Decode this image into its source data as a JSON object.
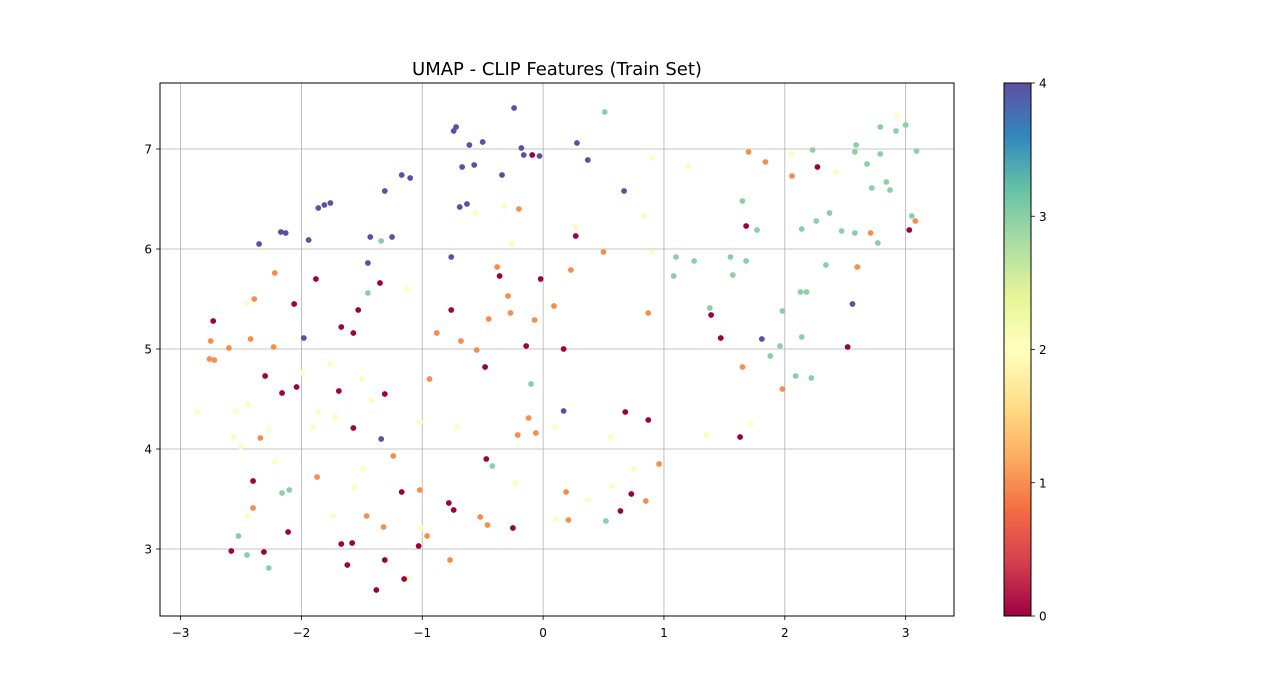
{
  "chart_data": {
    "type": "scatter",
    "title": "UMAP - CLIP Features (Train Set)",
    "xlabel": "",
    "ylabel": "",
    "xlim": [
      -3.17,
      3.4
    ],
    "ylim": [
      2.33,
      7.66
    ],
    "x_ticks": [
      -3,
      -2,
      -1,
      0,
      1,
      2,
      3
    ],
    "x_tick_labels": [
      "−3",
      "−2",
      "−1",
      "0",
      "1",
      "2",
      "3"
    ],
    "y_ticks": [
      3,
      4,
      5,
      6,
      7
    ],
    "y_tick_labels": [
      "3",
      "4",
      "5",
      "6",
      "7"
    ],
    "grid": true,
    "colormap": "Spectral",
    "color_value_range": [
      0,
      4
    ],
    "colorbar": {
      "ticks": [
        0,
        1,
        2,
        3,
        4
      ],
      "tick_labels": [
        "0",
        "1",
        "2",
        "3",
        "4"
      ],
      "stops": [
        "#9e0142",
        "#d53e4f",
        "#f46d43",
        "#fdae61",
        "#fee08b",
        "#ffffbf",
        "#e6f598",
        "#abdda4",
        "#66c2a5",
        "#3288bd",
        "#5e4fa2"
      ]
    },
    "class_colors": {
      "0": "#9e0142",
      "1": "#f68d4f",
      "2": "#fefdbe",
      "3": "#89d0a4",
      "4": "#5e4fa2"
    },
    "points": [
      {
        "x": -0.74,
        "y": 7.18,
        "c": 4
      },
      {
        "x": -0.72,
        "y": 7.22,
        "c": 4
      },
      {
        "x": -0.24,
        "y": 7.41,
        "c": 4
      },
      {
        "x": -0.61,
        "y": 7.04,
        "c": 4
      },
      {
        "x": -0.5,
        "y": 7.07,
        "c": 4
      },
      {
        "x": -0.18,
        "y": 7.01,
        "c": 4
      },
      {
        "x": -0.16,
        "y": 6.94,
        "c": 4
      },
      {
        "x": -0.03,
        "y": 6.93,
        "c": 4
      },
      {
        "x": 0.28,
        "y": 7.06,
        "c": 4
      },
      {
        "x": 0.37,
        "y": 6.89,
        "c": 4
      },
      {
        "x": -0.67,
        "y": 6.82,
        "c": 4
      },
      {
        "x": -0.57,
        "y": 6.84,
        "c": 4
      },
      {
        "x": -0.34,
        "y": 6.74,
        "c": 4
      },
      {
        "x": -0.63,
        "y": 6.45,
        "c": 4
      },
      {
        "x": -0.69,
        "y": 6.42,
        "c": 4
      },
      {
        "x": 0.67,
        "y": 6.58,
        "c": 4
      },
      {
        "x": -1.17,
        "y": 6.74,
        "c": 4
      },
      {
        "x": -1.1,
        "y": 6.71,
        "c": 4
      },
      {
        "x": -1.31,
        "y": 6.58,
        "c": 4
      },
      {
        "x": -1.76,
        "y": 6.46,
        "c": 4
      },
      {
        "x": -1.81,
        "y": 6.44,
        "c": 4
      },
      {
        "x": -1.86,
        "y": 6.41,
        "c": 4
      },
      {
        "x": -2.17,
        "y": 6.17,
        "c": 4
      },
      {
        "x": -2.13,
        "y": 6.16,
        "c": 4
      },
      {
        "x": -2.35,
        "y": 6.05,
        "c": 4
      },
      {
        "x": -1.94,
        "y": 6.09,
        "c": 4
      },
      {
        "x": -1.43,
        "y": 6.12,
        "c": 4
      },
      {
        "x": -1.25,
        "y": 6.12,
        "c": 4
      },
      {
        "x": -1.45,
        "y": 5.86,
        "c": 4
      },
      {
        "x": -0.76,
        "y": 5.92,
        "c": 4
      },
      {
        "x": -1.98,
        "y": 5.11,
        "c": 4
      },
      {
        "x": 0.17,
        "y": 4.38,
        "c": 4
      },
      {
        "x": -1.34,
        "y": 4.1,
        "c": 4
      },
      {
        "x": 1.81,
        "y": 5.1,
        "c": 4
      },
      {
        "x": 2.56,
        "y": 5.45,
        "c": 4
      },
      {
        "x": 0.51,
        "y": 7.37,
        "c": 3
      },
      {
        "x": 2.23,
        "y": 6.99,
        "c": 3
      },
      {
        "x": 2.59,
        "y": 7.04,
        "c": 3
      },
      {
        "x": 2.58,
        "y": 6.97,
        "c": 3
      },
      {
        "x": 2.79,
        "y": 7.22,
        "c": 3
      },
      {
        "x": 2.79,
        "y": 6.95,
        "c": 3
      },
      {
        "x": 2.92,
        "y": 7.18,
        "c": 3
      },
      {
        "x": 3.0,
        "y": 7.24,
        "c": 3
      },
      {
        "x": 3.09,
        "y": 6.98,
        "c": 3
      },
      {
        "x": 2.68,
        "y": 6.85,
        "c": 3
      },
      {
        "x": 2.72,
        "y": 6.61,
        "c": 3
      },
      {
        "x": 2.84,
        "y": 6.67,
        "c": 3
      },
      {
        "x": 2.87,
        "y": 6.59,
        "c": 3
      },
      {
        "x": 1.65,
        "y": 6.48,
        "c": 3
      },
      {
        "x": 1.77,
        "y": 6.19,
        "c": 3
      },
      {
        "x": 2.14,
        "y": 6.2,
        "c": 3
      },
      {
        "x": 2.26,
        "y": 6.28,
        "c": 3
      },
      {
        "x": 2.37,
        "y": 6.36,
        "c": 3
      },
      {
        "x": 2.47,
        "y": 6.18,
        "c": 3
      },
      {
        "x": 2.58,
        "y": 6.16,
        "c": 3
      },
      {
        "x": 2.77,
        "y": 6.06,
        "c": 3
      },
      {
        "x": 3.05,
        "y": 6.33,
        "c": 3
      },
      {
        "x": -1.34,
        "y": 6.08,
        "c": 3
      },
      {
        "x": 1.1,
        "y": 5.92,
        "c": 3
      },
      {
        "x": 1.25,
        "y": 5.88,
        "c": 3
      },
      {
        "x": 1.55,
        "y": 5.92,
        "c": 3
      },
      {
        "x": 1.68,
        "y": 5.88,
        "c": 3
      },
      {
        "x": 1.08,
        "y": 5.73,
        "c": 3
      },
      {
        "x": 1.57,
        "y": 5.74,
        "c": 3
      },
      {
        "x": 2.34,
        "y": 5.84,
        "c": 3
      },
      {
        "x": -1.45,
        "y": 5.56,
        "c": 3
      },
      {
        "x": 2.13,
        "y": 5.57,
        "c": 3
      },
      {
        "x": 2.18,
        "y": 5.57,
        "c": 3
      },
      {
        "x": 1.38,
        "y": 5.41,
        "c": 3
      },
      {
        "x": 1.98,
        "y": 5.38,
        "c": 3
      },
      {
        "x": 2.14,
        "y": 5.12,
        "c": 3
      },
      {
        "x": 1.96,
        "y": 5.03,
        "c": 3
      },
      {
        "x": 1.88,
        "y": 4.93,
        "c": 3
      },
      {
        "x": 2.09,
        "y": 4.73,
        "c": 3
      },
      {
        "x": 2.22,
        "y": 4.71,
        "c": 3
      },
      {
        "x": -0.1,
        "y": 4.65,
        "c": 3
      },
      {
        "x": -0.42,
        "y": 3.83,
        "c": 3
      },
      {
        "x": -2.1,
        "y": 3.59,
        "c": 3
      },
      {
        "x": -2.16,
        "y": 3.56,
        "c": 3
      },
      {
        "x": -2.52,
        "y": 3.13,
        "c": 3
      },
      {
        "x": -2.45,
        "y": 2.94,
        "c": 3
      },
      {
        "x": -2.27,
        "y": 2.81,
        "c": 3
      },
      {
        "x": 0.52,
        "y": 3.28,
        "c": 3
      },
      {
        "x": 0.9,
        "y": 6.91,
        "c": 2
      },
      {
        "x": 1.2,
        "y": 6.83,
        "c": 2
      },
      {
        "x": 2.05,
        "y": 6.95,
        "c": 2
      },
      {
        "x": 2.42,
        "y": 6.77,
        "c": 2
      },
      {
        "x": 2.93,
        "y": 7.33,
        "c": 2
      },
      {
        "x": -0.56,
        "y": 6.36,
        "c": 2
      },
      {
        "x": -0.32,
        "y": 6.43,
        "c": 2
      },
      {
        "x": 0.84,
        "y": 6.33,
        "c": 2
      },
      {
        "x": 0.27,
        "y": 6.22,
        "c": 2
      },
      {
        "x": -0.26,
        "y": 6.05,
        "c": 2
      },
      {
        "x": 0.9,
        "y": 5.97,
        "c": 2
      },
      {
        "x": -1.13,
        "y": 5.6,
        "c": 2
      },
      {
        "x": -2.45,
        "y": 5.46,
        "c": 2
      },
      {
        "x": -1.99,
        "y": 4.76,
        "c": 2
      },
      {
        "x": -1.76,
        "y": 4.85,
        "c": 2
      },
      {
        "x": -1.5,
        "y": 4.7,
        "c": 2
      },
      {
        "x": -1.42,
        "y": 4.49,
        "c": 2
      },
      {
        "x": -2.86,
        "y": 4.37,
        "c": 2
      },
      {
        "x": -2.54,
        "y": 4.38,
        "c": 2
      },
      {
        "x": -2.44,
        "y": 4.44,
        "c": 2
      },
      {
        "x": -1.86,
        "y": 4.37,
        "c": 2
      },
      {
        "x": -1.72,
        "y": 4.32,
        "c": 2
      },
      {
        "x": -1.9,
        "y": 4.22,
        "c": 2
      },
      {
        "x": -1.02,
        "y": 4.27,
        "c": 2
      },
      {
        "x": -0.71,
        "y": 4.22,
        "c": 2
      },
      {
        "x": 0.1,
        "y": 4.22,
        "c": 2
      },
      {
        "x": -2.56,
        "y": 4.12,
        "c": 2
      },
      {
        "x": -2.27,
        "y": 4.19,
        "c": 2
      },
      {
        "x": -2.5,
        "y": 4.02,
        "c": 2
      },
      {
        "x": 0.56,
        "y": 4.12,
        "c": 2
      },
      {
        "x": 1.35,
        "y": 4.14,
        "c": 2
      },
      {
        "x": 1.72,
        "y": 4.25,
        "c": 2
      },
      {
        "x": -2.22,
        "y": 3.87,
        "c": 2
      },
      {
        "x": -1.49,
        "y": 3.8,
        "c": 2
      },
      {
        "x": 0.75,
        "y": 3.8,
        "c": 2
      },
      {
        "x": -1.56,
        "y": 3.62,
        "c": 2
      },
      {
        "x": -0.23,
        "y": 3.66,
        "c": 2
      },
      {
        "x": 0.57,
        "y": 3.63,
        "c": 2
      },
      {
        "x": 0.37,
        "y": 3.49,
        "c": 2
      },
      {
        "x": -2.45,
        "y": 3.33,
        "c": 2
      },
      {
        "x": -1.74,
        "y": 3.33,
        "c": 2
      },
      {
        "x": 0.11,
        "y": 3.3,
        "c": 2
      },
      {
        "x": -1.01,
        "y": 3.21,
        "c": 2
      },
      {
        "x": -1.12,
        "y": 2.71,
        "c": 2
      },
      {
        "x": 1.7,
        "y": 6.97,
        "c": 1
      },
      {
        "x": 1.84,
        "y": 6.87,
        "c": 1
      },
      {
        "x": 2.06,
        "y": 6.73,
        "c": 1
      },
      {
        "x": -0.2,
        "y": 6.4,
        "c": 1
      },
      {
        "x": 3.08,
        "y": 6.28,
        "c": 1
      },
      {
        "x": 2.71,
        "y": 6.16,
        "c": 1
      },
      {
        "x": 0.5,
        "y": 5.97,
        "c": 1
      },
      {
        "x": 2.6,
        "y": 5.82,
        "c": 1
      },
      {
        "x": -0.38,
        "y": 5.82,
        "c": 1
      },
      {
        "x": 0.23,
        "y": 5.79,
        "c": 1
      },
      {
        "x": -2.22,
        "y": 5.76,
        "c": 1
      },
      {
        "x": -2.39,
        "y": 5.5,
        "c": 1
      },
      {
        "x": -0.29,
        "y": 5.53,
        "c": 1
      },
      {
        "x": 0.09,
        "y": 5.43,
        "c": 1
      },
      {
        "x": -0.27,
        "y": 5.36,
        "c": 1
      },
      {
        "x": 0.87,
        "y": 5.36,
        "c": 1
      },
      {
        "x": -0.45,
        "y": 5.3,
        "c": 1
      },
      {
        "x": -0.07,
        "y": 5.29,
        "c": 1
      },
      {
        "x": -0.88,
        "y": 5.16,
        "c": 1
      },
      {
        "x": -2.75,
        "y": 5.08,
        "c": 1
      },
      {
        "x": -2.42,
        "y": 5.1,
        "c": 1
      },
      {
        "x": -0.68,
        "y": 5.08,
        "c": 1
      },
      {
        "x": -2.6,
        "y": 5.01,
        "c": 1
      },
      {
        "x": -2.23,
        "y": 5.02,
        "c": 1
      },
      {
        "x": -0.55,
        "y": 4.99,
        "c": 1
      },
      {
        "x": -2.76,
        "y": 4.9,
        "c": 1
      },
      {
        "x": -2.72,
        "y": 4.89,
        "c": 1
      },
      {
        "x": 1.65,
        "y": 4.82,
        "c": 1
      },
      {
        "x": -0.94,
        "y": 4.7,
        "c": 1
      },
      {
        "x": 1.98,
        "y": 4.6,
        "c": 1
      },
      {
        "x": -0.12,
        "y": 4.31,
        "c": 1
      },
      {
        "x": -0.21,
        "y": 4.14,
        "c": 1
      },
      {
        "x": -0.06,
        "y": 4.16,
        "c": 1
      },
      {
        "x": -2.34,
        "y": 4.11,
        "c": 1
      },
      {
        "x": -1.24,
        "y": 3.93,
        "c": 1
      },
      {
        "x": 0.96,
        "y": 3.85,
        "c": 1
      },
      {
        "x": -1.87,
        "y": 3.72,
        "c": 1
      },
      {
        "x": -1.02,
        "y": 3.59,
        "c": 1
      },
      {
        "x": 0.19,
        "y": 3.57,
        "c": 1
      },
      {
        "x": 0.85,
        "y": 3.48,
        "c": 1
      },
      {
        "x": -2.4,
        "y": 3.41,
        "c": 1
      },
      {
        "x": -1.46,
        "y": 3.33,
        "c": 1
      },
      {
        "x": -0.52,
        "y": 3.32,
        "c": 1
      },
      {
        "x": 0.21,
        "y": 3.29,
        "c": 1
      },
      {
        "x": -1.32,
        "y": 3.22,
        "c": 1
      },
      {
        "x": -0.46,
        "y": 3.24,
        "c": 1
      },
      {
        "x": -0.96,
        "y": 3.13,
        "c": 1
      },
      {
        "x": -0.77,
        "y": 2.89,
        "c": 1
      },
      {
        "x": -0.09,
        "y": 6.94,
        "c": 0
      },
      {
        "x": 2.27,
        "y": 6.82,
        "c": 0
      },
      {
        "x": 1.68,
        "y": 6.23,
        "c": 0
      },
      {
        "x": 0.27,
        "y": 6.13,
        "c": 0
      },
      {
        "x": 3.03,
        "y": 6.19,
        "c": 0
      },
      {
        "x": -0.36,
        "y": 5.73,
        "c": 0
      },
      {
        "x": -0.02,
        "y": 5.7,
        "c": 0
      },
      {
        "x": -1.88,
        "y": 5.7,
        "c": 0
      },
      {
        "x": -1.35,
        "y": 5.66,
        "c": 0
      },
      {
        "x": -2.06,
        "y": 5.45,
        "c": 0
      },
      {
        "x": -0.76,
        "y": 5.39,
        "c": 0
      },
      {
        "x": -1.53,
        "y": 5.39,
        "c": 0
      },
      {
        "x": 1.39,
        "y": 5.34,
        "c": 0
      },
      {
        "x": -2.73,
        "y": 5.28,
        "c": 0
      },
      {
        "x": -1.67,
        "y": 5.22,
        "c": 0
      },
      {
        "x": -1.57,
        "y": 5.16,
        "c": 0
      },
      {
        "x": 1.47,
        "y": 5.11,
        "c": 0
      },
      {
        "x": -0.14,
        "y": 5.03,
        "c": 0
      },
      {
        "x": 2.52,
        "y": 5.02,
        "c": 0
      },
      {
        "x": 0.17,
        "y": 5.0,
        "c": 0
      },
      {
        "x": -0.48,
        "y": 4.82,
        "c": 0
      },
      {
        "x": -2.3,
        "y": 4.73,
        "c": 0
      },
      {
        "x": -2.04,
        "y": 4.62,
        "c": 0
      },
      {
        "x": -1.69,
        "y": 4.58,
        "c": 0
      },
      {
        "x": -2.16,
        "y": 4.56,
        "c": 0
      },
      {
        "x": -1.31,
        "y": 4.55,
        "c": 0
      },
      {
        "x": 0.68,
        "y": 4.37,
        "c": 0
      },
      {
        "x": 0.87,
        "y": 4.29,
        "c": 0
      },
      {
        "x": -1.57,
        "y": 4.21,
        "c": 0
      },
      {
        "x": 1.63,
        "y": 4.12,
        "c": 0
      },
      {
        "x": -0.47,
        "y": 3.9,
        "c": 0
      },
      {
        "x": -2.4,
        "y": 3.68,
        "c": 0
      },
      {
        "x": -1.17,
        "y": 3.57,
        "c": 0
      },
      {
        "x": 0.73,
        "y": 3.55,
        "c": 0
      },
      {
        "x": -0.78,
        "y": 3.46,
        "c": 0
      },
      {
        "x": -0.74,
        "y": 3.39,
        "c": 0
      },
      {
        "x": 0.64,
        "y": 3.38,
        "c": 0
      },
      {
        "x": -0.25,
        "y": 3.21,
        "c": 0
      },
      {
        "x": -2.11,
        "y": 3.17,
        "c": 0
      },
      {
        "x": -1.67,
        "y": 3.05,
        "c": 0
      },
      {
        "x": -1.58,
        "y": 3.06,
        "c": 0
      },
      {
        "x": -1.03,
        "y": 3.03,
        "c": 0
      },
      {
        "x": -2.58,
        "y": 2.98,
        "c": 0
      },
      {
        "x": -2.31,
        "y": 2.97,
        "c": 0
      },
      {
        "x": -1.31,
        "y": 2.89,
        "c": 0
      },
      {
        "x": -1.62,
        "y": 2.84,
        "c": 0
      },
      {
        "x": -1.15,
        "y": 2.7,
        "c": 0
      },
      {
        "x": -1.38,
        "y": 2.59,
        "c": 0
      }
    ]
  }
}
